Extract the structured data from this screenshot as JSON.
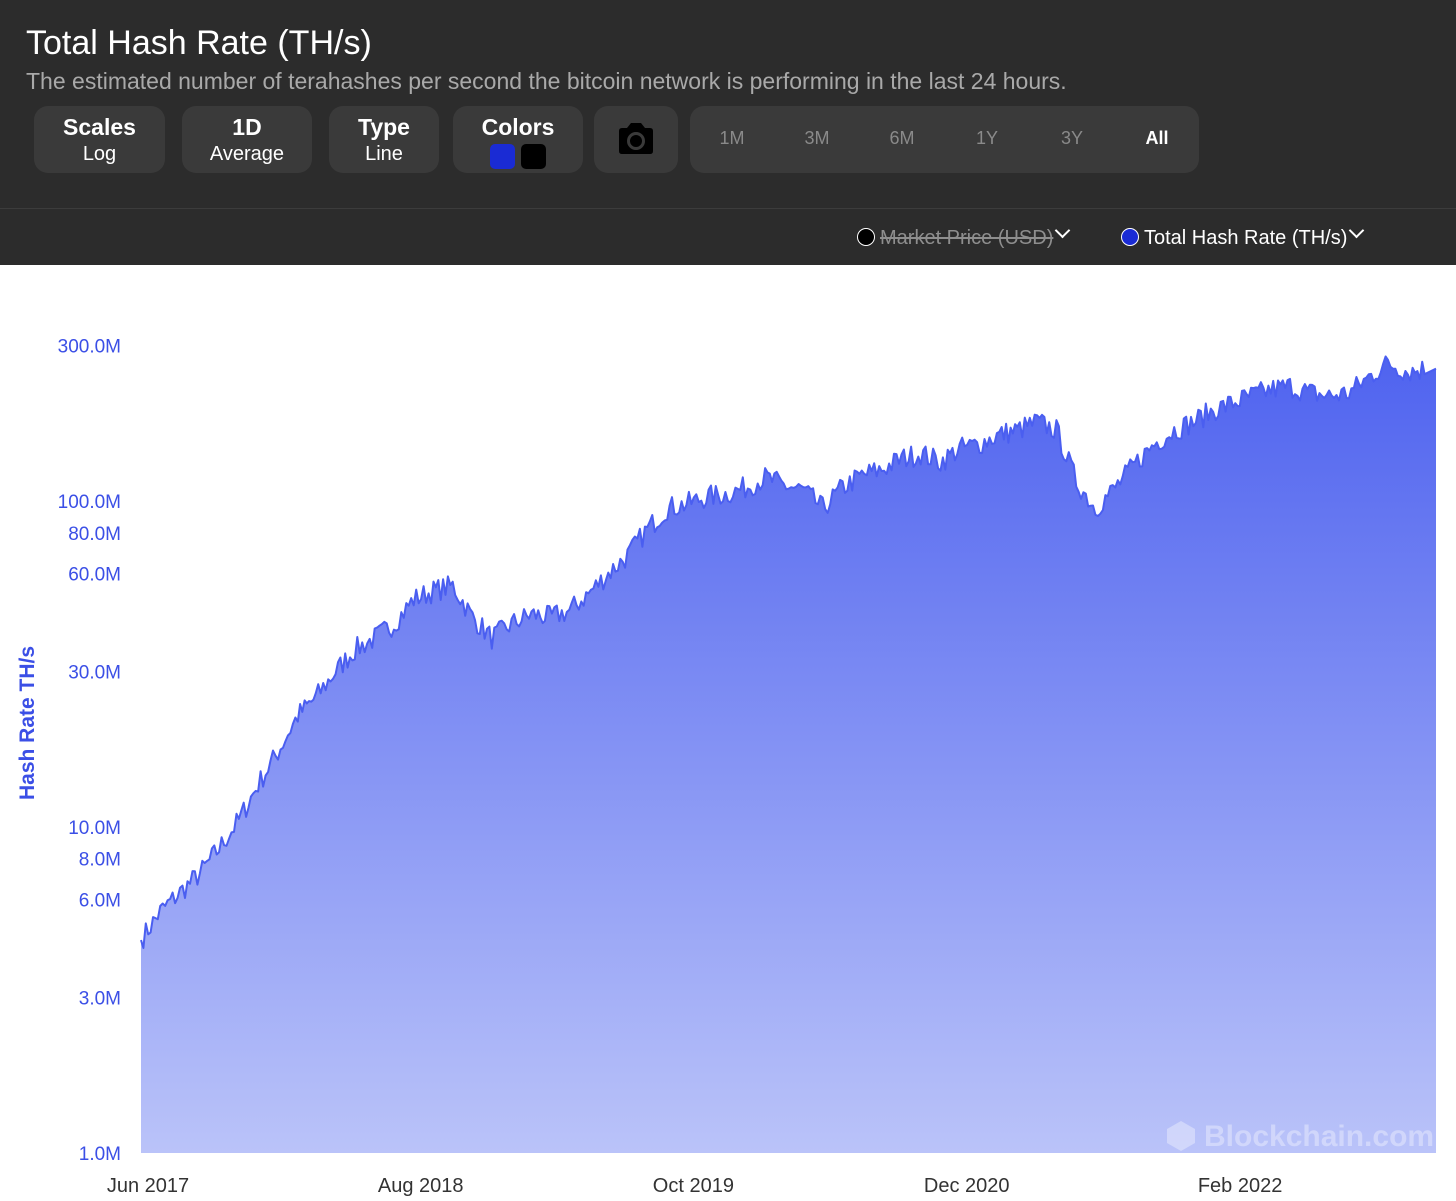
{
  "header": {
    "title": "Total Hash Rate (TH/s)",
    "subtitle": "The estimated number of terahashes per second the bitcoin network is performing in the last 24 hours."
  },
  "controls": {
    "scales": {
      "label": "Scales",
      "value": "Log"
    },
    "average": {
      "label": "1D",
      "value": "Average"
    },
    "type": {
      "label": "Type",
      "value": "Line"
    },
    "colors": {
      "label": "Colors",
      "swatches": [
        "#1a2bd4",
        "#000000"
      ]
    },
    "camera_icon": "camera-icon",
    "ranges": [
      "1M",
      "3M",
      "6M",
      "1Y",
      "3Y",
      "All"
    ],
    "active_range": "All"
  },
  "legend": [
    {
      "label": "Market Price (USD)",
      "color": "#000000",
      "disabled": true
    },
    {
      "label": "Total Hash Rate (TH/s)",
      "color": "#1a2bd4",
      "disabled": false
    }
  ],
  "watermark": "Blockchain.com",
  "chart_data": {
    "type": "area",
    "ylabel": "Hash Rate TH/s",
    "yscale": "log",
    "ylim": [
      1000000,
      400000000
    ],
    "yticks": [
      {
        "value": 1000000,
        "label": "1.0M"
      },
      {
        "value": 3000000,
        "label": "3.0M"
      },
      {
        "value": 6000000,
        "label": "6.0M"
      },
      {
        "value": 8000000,
        "label": "8.0M"
      },
      {
        "value": 10000000,
        "label": "10.0M"
      },
      {
        "value": 30000000,
        "label": "30.0M"
      },
      {
        "value": 60000000,
        "label": "60.0M"
      },
      {
        "value": 80000000,
        "label": "80.0M"
      },
      {
        "value": 100000000,
        "label": "100.0M"
      },
      {
        "value": 300000000,
        "label": "300.0M"
      }
    ],
    "xlim": [
      "2017-06-01",
      "2022-12-15"
    ],
    "xticks": [
      {
        "date": "2017-06-01",
        "label": "Jun 2017"
      },
      {
        "date": "2018-08-01",
        "label": "Aug 2018"
      },
      {
        "date": "2019-10-01",
        "label": "Oct 2019"
      },
      {
        "date": "2020-12-01",
        "label": "Dec 2020"
      },
      {
        "date": "2022-02-01",
        "label": "Feb 2022"
      }
    ],
    "grid": false,
    "series": [
      {
        "name": "Total Hash Rate (TH/s)",
        "color": "#4a5ef0",
        "points": [
          [
            "2017-06-01",
            4500000
          ],
          [
            "2017-07-01",
            5500000
          ],
          [
            "2017-08-01",
            6300000
          ],
          [
            "2017-09-01",
            7200000
          ],
          [
            "2017-10-01",
            8600000
          ],
          [
            "2017-11-01",
            10500000
          ],
          [
            "2017-12-01",
            13500000
          ],
          [
            "2018-01-01",
            17000000
          ],
          [
            "2018-02-01",
            22000000
          ],
          [
            "2018-03-01",
            25000000
          ],
          [
            "2018-04-01",
            30000000
          ],
          [
            "2018-05-01",
            35000000
          ],
          [
            "2018-06-01",
            38000000
          ],
          [
            "2018-07-01",
            42000000
          ],
          [
            "2018-08-01",
            50000000
          ],
          [
            "2018-09-01",
            53000000
          ],
          [
            "2018-10-01",
            55000000
          ],
          [
            "2018-11-01",
            44000000
          ],
          [
            "2018-12-01",
            38000000
          ],
          [
            "2019-01-01",
            42000000
          ],
          [
            "2019-02-01",
            45000000
          ],
          [
            "2019-03-01",
            44000000
          ],
          [
            "2019-04-01",
            46000000
          ],
          [
            "2019-05-01",
            52000000
          ],
          [
            "2019-06-01",
            60000000
          ],
          [
            "2019-07-01",
            68000000
          ],
          [
            "2019-08-01",
            82000000
          ],
          [
            "2019-09-01",
            95000000
          ],
          [
            "2019-10-01",
            98000000
          ],
          [
            "2019-11-01",
            103000000
          ],
          [
            "2019-12-01",
            105000000
          ],
          [
            "2020-01-01",
            110000000
          ],
          [
            "2020-02-01",
            118000000
          ],
          [
            "2020-03-01",
            112000000
          ],
          [
            "2020-04-01",
            108000000
          ],
          [
            "2020-05-01",
            95000000
          ],
          [
            "2020-06-01",
            110000000
          ],
          [
            "2020-07-01",
            120000000
          ],
          [
            "2020-08-01",
            125000000
          ],
          [
            "2020-09-01",
            135000000
          ],
          [
            "2020-10-01",
            140000000
          ],
          [
            "2020-11-01",
            132000000
          ],
          [
            "2020-12-01",
            145000000
          ],
          [
            "2021-01-01",
            150000000
          ],
          [
            "2021-02-01",
            160000000
          ],
          [
            "2021-03-01",
            165000000
          ],
          [
            "2021-04-01",
            175000000
          ],
          [
            "2021-05-01",
            165000000
          ],
          [
            "2021-06-01",
            115000000
          ],
          [
            "2021-07-01",
            95000000
          ],
          [
            "2021-08-01",
            110000000
          ],
          [
            "2021-09-01",
            130000000
          ],
          [
            "2021-10-01",
            150000000
          ],
          [
            "2021-11-01",
            165000000
          ],
          [
            "2021-12-01",
            175000000
          ],
          [
            "2022-01-01",
            190000000
          ],
          [
            "2022-02-01",
            200000000
          ],
          [
            "2022-03-01",
            210000000
          ],
          [
            "2022-04-01",
            220000000
          ],
          [
            "2022-05-01",
            225000000
          ],
          [
            "2022-06-01",
            215000000
          ],
          [
            "2022-07-01",
            210000000
          ],
          [
            "2022-08-01",
            215000000
          ],
          [
            "2022-09-01",
            240000000
          ],
          [
            "2022-10-01",
            265000000
          ],
          [
            "2022-11-01",
            250000000
          ],
          [
            "2022-12-01",
            255000000
          ]
        ]
      }
    ]
  }
}
